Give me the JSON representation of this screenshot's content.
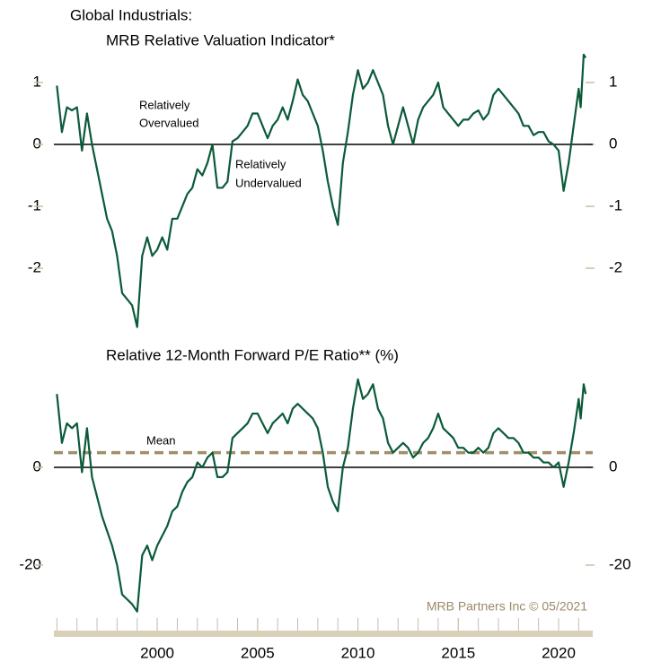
{
  "chart_data": [
    {
      "type": "line",
      "title": "Global Industrials:",
      "subtitle": "MRB Relative Valuation Indicator*",
      "annotations": [
        "Relatively",
        "Overvalued",
        "Relatively",
        "Undervalued"
      ],
      "x": [
        1995,
        1995.25,
        1995.5,
        1995.75,
        1996,
        1996.25,
        1996.5,
        1996.75,
        1997,
        1997.25,
        1997.5,
        1997.75,
        1998,
        1998.25,
        1998.5,
        1998.75,
        1999,
        1999.25,
        1999.5,
        1999.75,
        2000,
        2000.25,
        2000.5,
        2000.75,
        2001,
        2001.25,
        2001.5,
        2001.75,
        2002,
        2002.25,
        2002.5,
        2002.75,
        2003,
        2003.25,
        2003.5,
        2003.75,
        2004,
        2004.25,
        2004.5,
        2004.75,
        2005,
        2005.25,
        2005.5,
        2005.75,
        2006,
        2006.25,
        2006.5,
        2006.75,
        2007,
        2007.25,
        2007.5,
        2007.75,
        2008,
        2008.25,
        2008.5,
        2008.75,
        2009,
        2009.25,
        2009.5,
        2009.75,
        2010,
        2010.25,
        2010.5,
        2010.75,
        2011,
        2011.25,
        2011.5,
        2011.75,
        2012,
        2012.25,
        2012.5,
        2012.75,
        2013,
        2013.25,
        2013.5,
        2013.75,
        2014,
        2014.25,
        2014.5,
        2014.75,
        2015,
        2015.25,
        2015.5,
        2015.75,
        2016,
        2016.25,
        2016.5,
        2016.75,
        2017,
        2017.25,
        2017.5,
        2017.75,
        2018,
        2018.25,
        2018.5,
        2018.75,
        2019,
        2019.25,
        2019.5,
        2019.75,
        2020,
        2020.25,
        2020.5,
        2020.75,
        2021,
        2021.1,
        2021.25,
        2021.35
      ],
      "series": [
        {
          "name": "MRB Relative Valuation Indicator",
          "color": "#0b5a3a",
          "values": [
            0.95,
            0.2,
            0.6,
            0.55,
            0.6,
            -0.1,
            0.5,
            0.0,
            -0.4,
            -0.8,
            -1.2,
            -1.4,
            -1.8,
            -2.4,
            -2.5,
            -2.6,
            -2.95,
            -1.8,
            -1.5,
            -1.8,
            -1.7,
            -1.5,
            -1.7,
            -1.2,
            -1.2,
            -1.0,
            -0.8,
            -0.7,
            -0.4,
            -0.5,
            -0.3,
            0.0,
            -0.7,
            -0.7,
            -0.6,
            0.05,
            0.1,
            0.2,
            0.3,
            0.5,
            0.5,
            0.3,
            0.1,
            0.3,
            0.4,
            0.6,
            0.4,
            0.7,
            1.05,
            0.8,
            0.7,
            0.5,
            0.3,
            -0.1,
            -0.6,
            -1.0,
            -1.3,
            -0.3,
            0.2,
            0.8,
            1.2,
            0.9,
            1.0,
            1.2,
            1.0,
            0.8,
            0.3,
            0.0,
            0.3,
            0.6,
            0.3,
            0.0,
            0.4,
            0.6,
            0.7,
            0.8,
            1.0,
            0.6,
            0.5,
            0.4,
            0.3,
            0.4,
            0.4,
            0.5,
            0.55,
            0.4,
            0.5,
            0.8,
            0.9,
            0.8,
            0.7,
            0.6,
            0.5,
            0.3,
            0.3,
            0.15,
            0.2,
            0.2,
            0.05,
            0.0,
            -0.1,
            -0.75,
            -0.3,
            0.3,
            0.9,
            0.6,
            1.45,
            1.4
          ]
        }
      ],
      "xlim": [
        1994.85,
        2021.7
      ],
      "ylim": [
        -3.05,
        1.5
      ],
      "yticks": [
        1,
        0,
        -1,
        -2
      ],
      "zero_line": 0
    },
    {
      "type": "line",
      "title": "Relative 12-Month Forward P/E Ratio** (%)",
      "mean_label": "Mean",
      "mean": 3,
      "mean_color": "#a08f6a",
      "source": "MRB Partners Inc © 05/2021",
      "x": [
        1995,
        1995.25,
        1995.5,
        1995.75,
        1996,
        1996.25,
        1996.5,
        1996.75,
        1997,
        1997.25,
        1997.5,
        1997.75,
        1998,
        1998.25,
        1998.5,
        1998.75,
        1999,
        1999.25,
        1999.5,
        1999.75,
        2000,
        2000.25,
        2000.5,
        2000.75,
        2001,
        2001.25,
        2001.5,
        2001.75,
        2002,
        2002.25,
        2002.5,
        2002.75,
        2003,
        2003.25,
        2003.5,
        2003.75,
        2004,
        2004.25,
        2004.5,
        2004.75,
        2005,
        2005.25,
        2005.5,
        2005.75,
        2006,
        2006.25,
        2006.5,
        2006.75,
        2007,
        2007.25,
        2007.5,
        2007.75,
        2008,
        2008.25,
        2008.5,
        2008.75,
        2009,
        2009.25,
        2009.5,
        2009.75,
        2010,
        2010.25,
        2010.5,
        2010.75,
        2011,
        2011.25,
        2011.5,
        2011.75,
        2012,
        2012.25,
        2012.5,
        2012.75,
        2013,
        2013.25,
        2013.5,
        2013.75,
        2014,
        2014.25,
        2014.5,
        2014.75,
        2015,
        2015.25,
        2015.5,
        2015.75,
        2016,
        2016.25,
        2016.5,
        2016.75,
        2017,
        2017.25,
        2017.5,
        2017.75,
        2018,
        2018.25,
        2018.5,
        2018.75,
        2019,
        2019.25,
        2019.5,
        2019.75,
        2020,
        2020.25,
        2020.5,
        2020.75,
        2021,
        2021.1,
        2021.25,
        2021.35
      ],
      "series": [
        {
          "name": "Relative 12-Month Forward P/E Ratio",
          "color": "#0b5a3a",
          "values": [
            15,
            5,
            9,
            8,
            9,
            -1,
            8,
            -2,
            -6,
            -10,
            -13,
            -16,
            -20,
            -26,
            -27,
            -28,
            -29.5,
            -18,
            -16,
            -19,
            -16,
            -14,
            -12,
            -9,
            -8,
            -5,
            -3,
            -2,
            1,
            0,
            2,
            3,
            -2,
            -2,
            -1,
            6,
            7,
            8,
            9,
            11,
            11,
            9,
            7,
            9,
            10,
            11,
            9,
            12,
            13,
            12,
            11,
            10,
            8,
            3,
            -4,
            -7,
            -9,
            0,
            4,
            12,
            18,
            14,
            15,
            17,
            12,
            10,
            5,
            3,
            4,
            5,
            4,
            2,
            3,
            5,
            6,
            8,
            11,
            8,
            7,
            6,
            4,
            4,
            3,
            3,
            4,
            3,
            4,
            7,
            8,
            7,
            6,
            6,
            5,
            3,
            3,
            2,
            2,
            1,
            1,
            0,
            1,
            -4,
            1,
            7,
            14,
            10,
            17,
            15
          ]
        }
      ],
      "xlim": [
        1994.85,
        2021.7
      ],
      "xticks": [
        2000,
        2005,
        2010,
        2015,
        2020
      ],
      "xminorticks": [
        1995,
        1996,
        1997,
        1998,
        1999,
        2000,
        2001,
        2002,
        2003,
        2004,
        2005,
        2006,
        2007,
        2008,
        2009,
        2010,
        2011,
        2012,
        2013,
        2014,
        2015,
        2016,
        2017,
        2018,
        2019,
        2020,
        2021
      ],
      "ylim": [
        -30,
        20
      ],
      "yticks": [
        0,
        -20
      ],
      "zero_line": 0
    }
  ]
}
